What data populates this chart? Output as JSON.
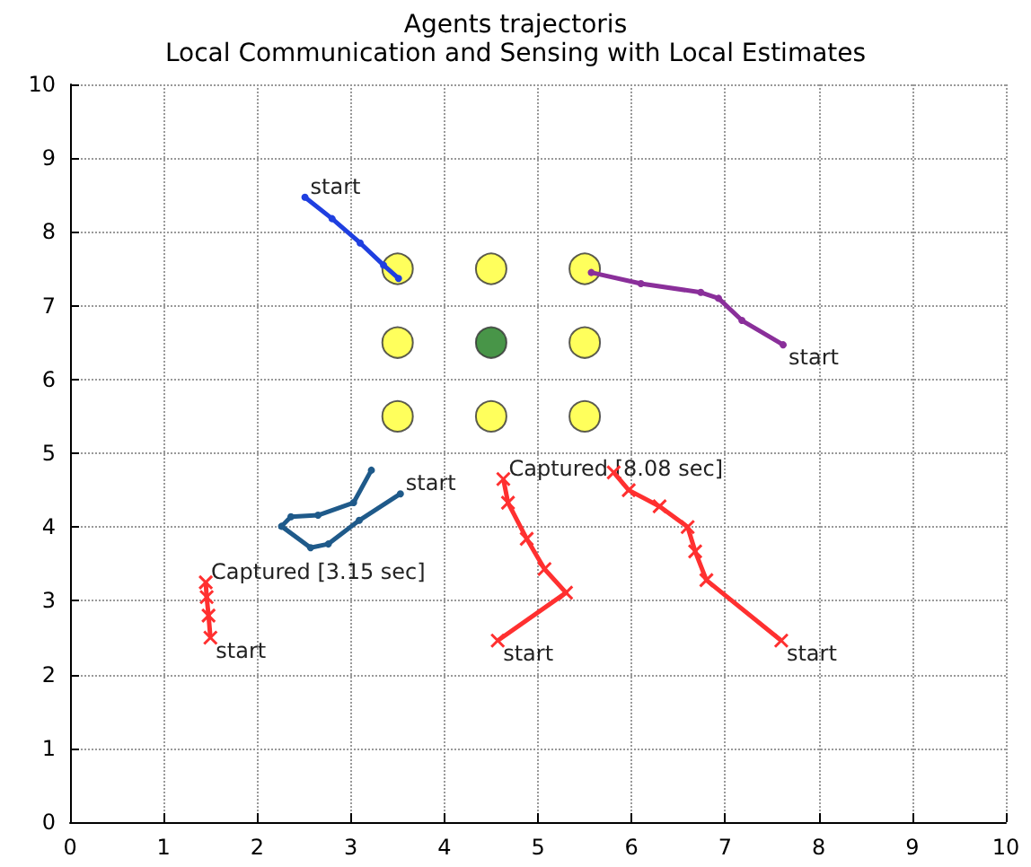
{
  "chart_data": {
    "type": "line",
    "title": "Agents trajectoris",
    "subtitle": "Local Communication and Sensing with Local Estimates",
    "xlim": [
      0,
      10
    ],
    "ylim": [
      0,
      10
    ],
    "xticks": [
      0,
      1,
      2,
      3,
      4,
      5,
      6,
      7,
      8,
      9,
      10
    ],
    "yticks": [
      0,
      1,
      2,
      3,
      4,
      5,
      6,
      7,
      8,
      9,
      10
    ],
    "grid": true,
    "series": [
      {
        "marker": "circle",
        "color": "#1f3fe0",
        "x": [
          2.51,
          2.8,
          3.1,
          3.35,
          3.51
        ],
        "values": [
          8.47,
          8.18,
          7.85,
          7.55,
          7.37
        ]
      },
      {
        "marker": "circle",
        "color": "#8a2f9a",
        "x": [
          7.62,
          7.18,
          6.93,
          6.74,
          6.1,
          5.57
        ],
        "values": [
          6.47,
          6.8,
          7.1,
          7.18,
          7.3,
          7.45
        ]
      },
      {
        "marker": "circle",
        "color": "#1f5a8a",
        "x": [
          3.53,
          3.09,
          2.76,
          2.57,
          2.26,
          2.36,
          2.65,
          3.03,
          3.22
        ],
        "values": [
          4.45,
          4.09,
          3.77,
          3.72,
          4.01,
          4.14,
          4.16,
          4.33,
          4.77
        ]
      },
      {
        "marker": "cross",
        "color": "#ff3030",
        "x": [
          1.5,
          1.48,
          1.46,
          1.45
        ],
        "values": [
          2.5,
          2.8,
          3.05,
          3.25
        ]
      },
      {
        "marker": "cross",
        "color": "#ff3030",
        "x": [
          4.57,
          5.3,
          5.07,
          4.88,
          4.68,
          4.63
        ],
        "values": [
          2.46,
          3.11,
          3.43,
          3.84,
          4.33,
          4.65
        ]
      },
      {
        "marker": "cross",
        "color": "#ff3030",
        "x": [
          7.6,
          6.8,
          6.68,
          6.6,
          6.3,
          5.97,
          5.81
        ],
        "values": [
          2.46,
          3.28,
          3.67,
          4.0,
          4.28,
          4.5,
          4.74
        ]
      },
      {
        "type": "scatter",
        "marker": "circle",
        "color": "#ffff33",
        "x": [
          3.5,
          4.5,
          5.5,
          3.5,
          5.5,
          3.5,
          4.5,
          5.5
        ],
        "values": [
          7.5,
          7.5,
          7.5,
          6.5,
          6.5,
          5.5,
          5.5,
          5.5
        ]
      },
      {
        "type": "scatter",
        "marker": "circle",
        "color": "#1a7a1a",
        "x": [
          4.5
        ],
        "values": [
          6.5
        ]
      }
    ],
    "annotations": [
      {
        "text": "start",
        "x": 2.51,
        "y": 8.47
      },
      {
        "text": "start",
        "x": 7.62,
        "y": 6.47
      },
      {
        "text": "start",
        "x": 3.53,
        "y": 4.45
      },
      {
        "text": "start",
        "x": 1.5,
        "y": 2.5
      },
      {
        "text": "start",
        "x": 4.57,
        "y": 2.46
      },
      {
        "text": "start",
        "x": 7.6,
        "y": 2.46
      },
      {
        "text": "Captured [3.15 sec]",
        "x": 1.45,
        "y": 3.25
      },
      {
        "text": "Captured [8.08 sec]",
        "x": 4.63,
        "y": 4.65
      }
    ]
  }
}
